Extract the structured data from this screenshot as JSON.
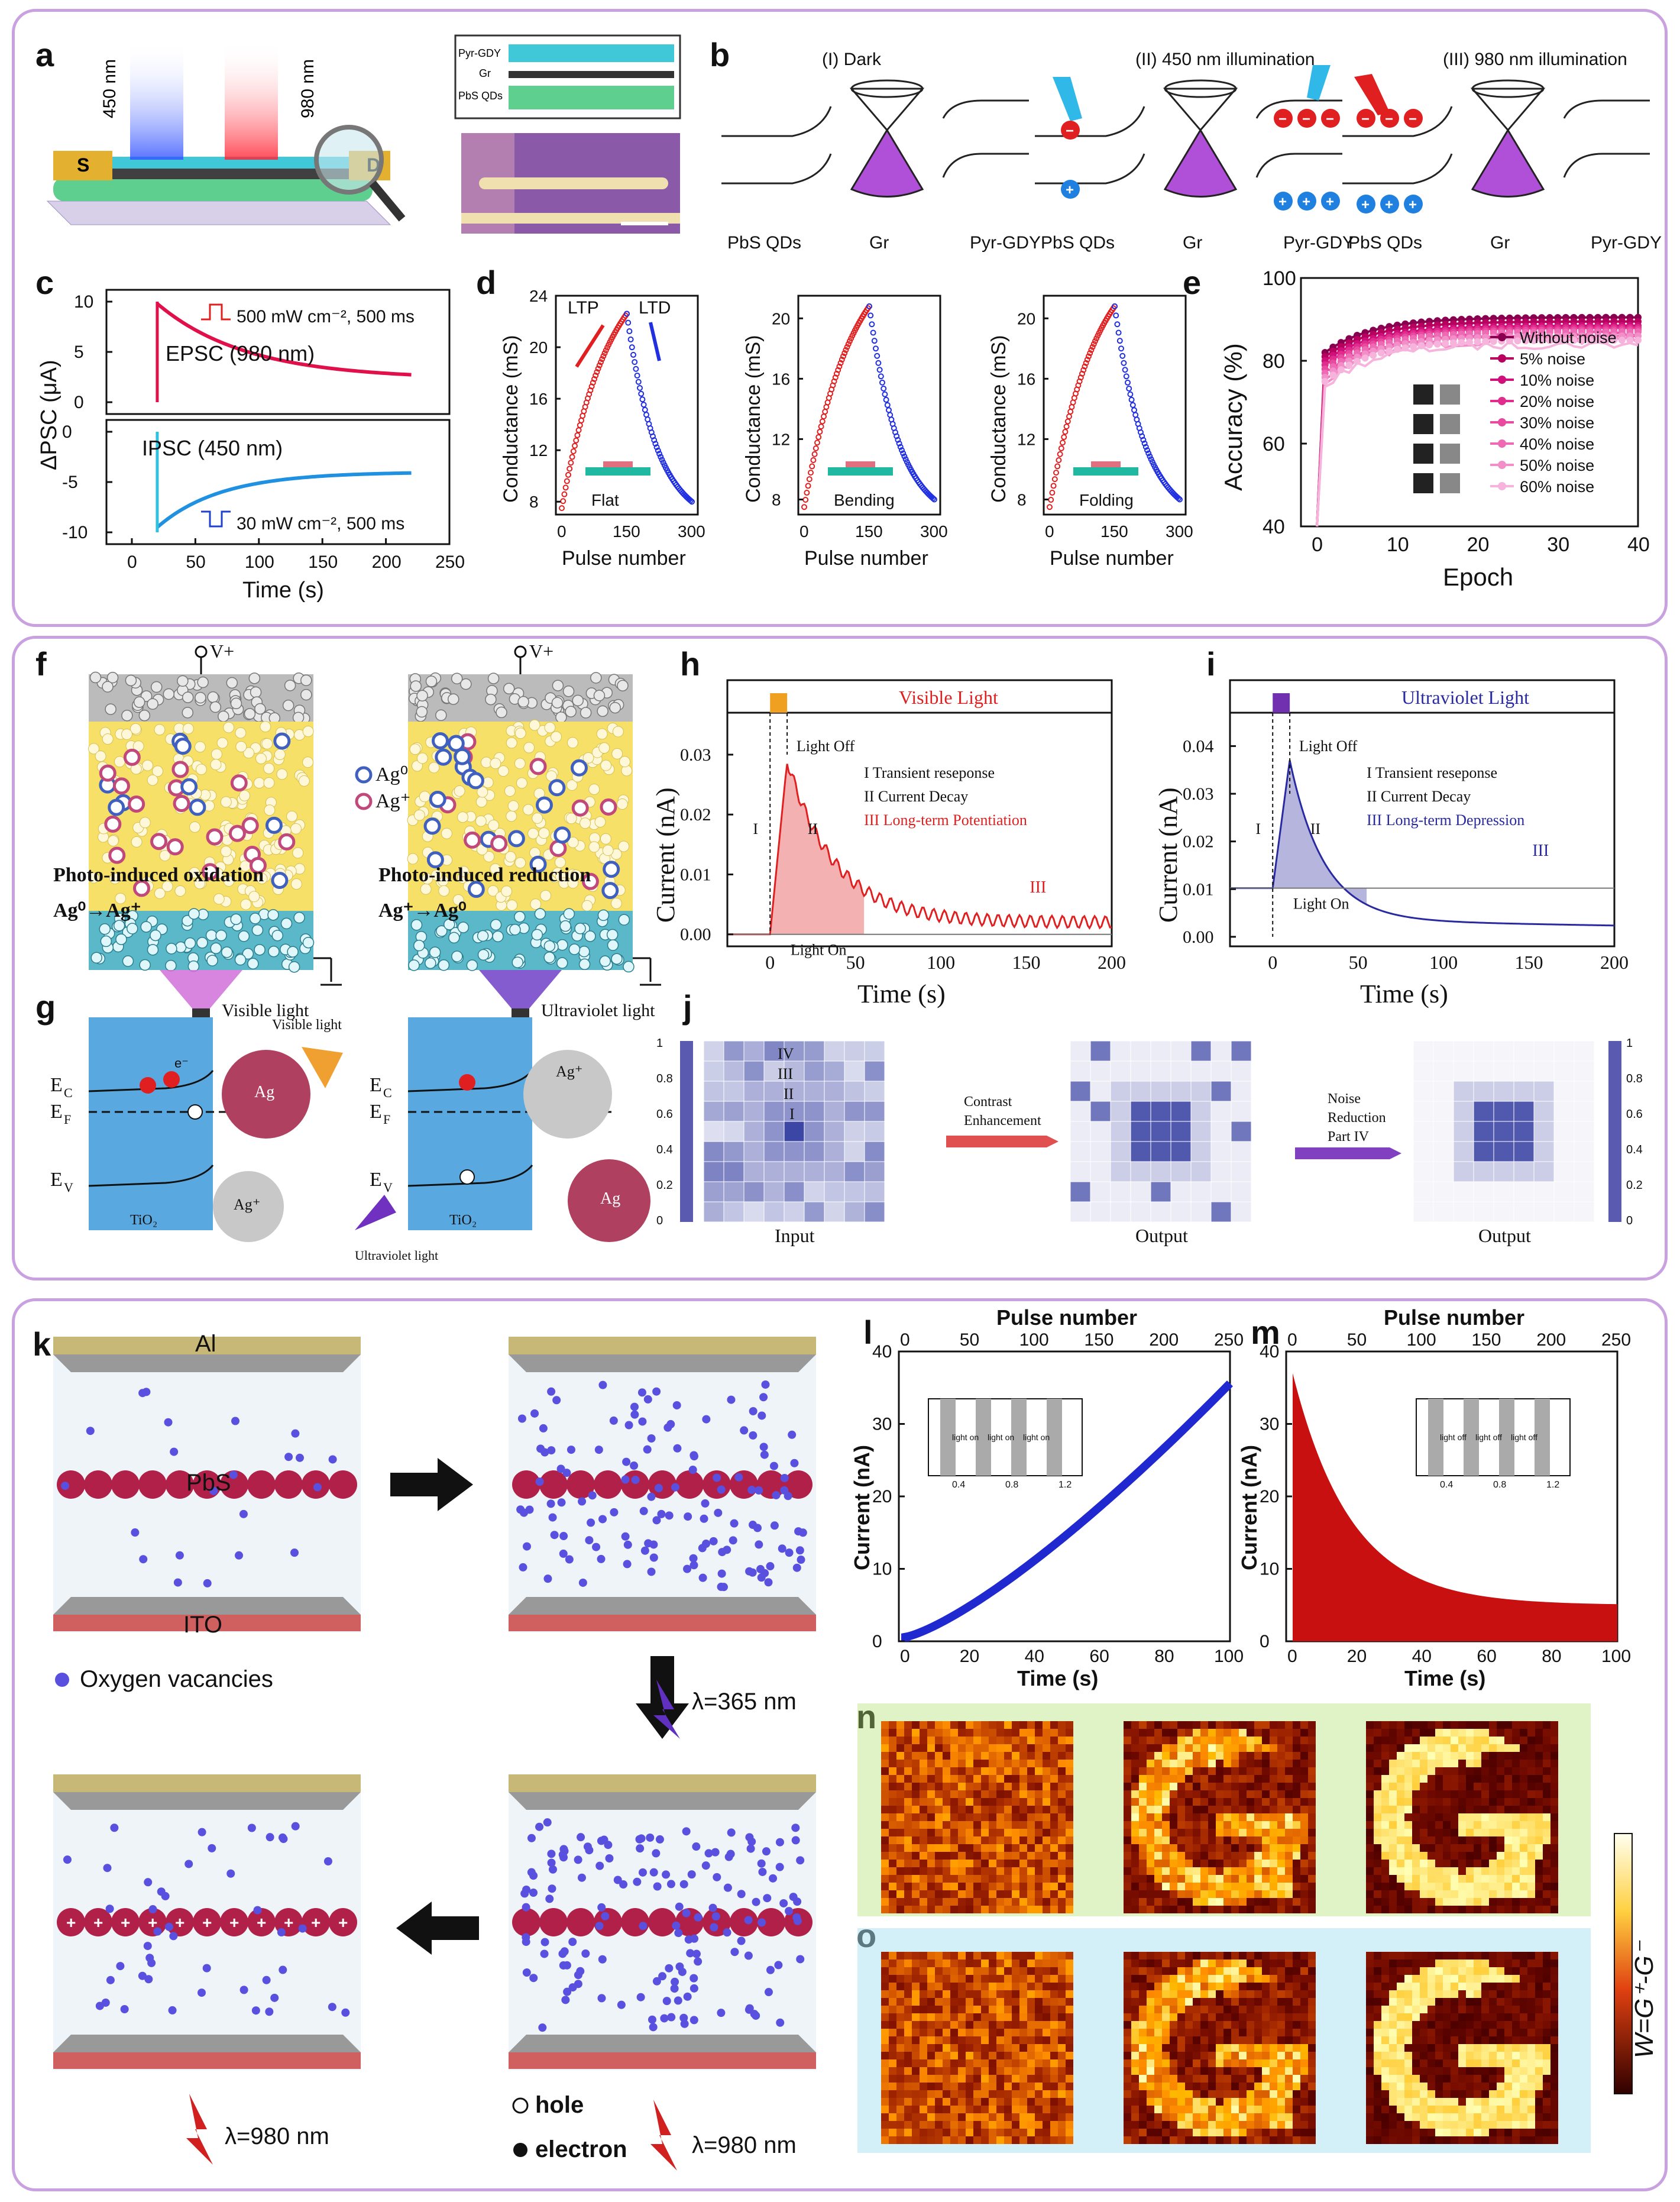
{
  "panels": {
    "a": {
      "label": "a",
      "wavelengths": [
        "450 nm",
        "980 nm"
      ],
      "electrodes": [
        "S",
        "D"
      ],
      "layers": [
        "Pyr-GDY",
        "Gr",
        "PbS QDs"
      ]
    },
    "b": {
      "label": "b",
      "states": [
        "(I) Dark",
        "(II) 450 nm illumination",
        "(III) 980 nm illumination"
      ],
      "materials": [
        "PbS QDs",
        "Gr",
        "Pyr-GDY"
      ]
    },
    "c": {
      "label": "c",
      "ylabel": "ΔPSC (μA)",
      "xlabel": "Time (s)",
      "epsc": "EPSC (980 nm)",
      "ipsc": "IPSC (450 nm)",
      "pulse1": "500 mW cm⁻², 500 ms",
      "pulse2": "30 mW cm⁻², 500 ms",
      "yticks_top": [
        "10",
        "5",
        "0"
      ],
      "yticks_bottom": [
        "0",
        "-5",
        "-10"
      ],
      "xticks": [
        "0",
        "50",
        "100",
        "150",
        "200",
        "250"
      ]
    },
    "d": {
      "label": "d",
      "ylabel": "Conductance (mS)",
      "xlabel": "Pulse number",
      "ltp": "LTP",
      "ltd": "LTD",
      "conditions": [
        "Flat",
        "Bending",
        "Folding"
      ],
      "yticks1": [
        "24",
        "20",
        "16",
        "12",
        "8"
      ],
      "yticks2": [
        "20",
        "16",
        "12",
        "8"
      ],
      "xticks": [
        "0",
        "150",
        "300"
      ]
    },
    "e": {
      "label": "e",
      "ylabel": "Accuracy (%)",
      "xlabel": "Epoch",
      "yticks": [
        "100",
        "80",
        "60",
        "40"
      ],
      "xticks": [
        "0",
        "10",
        "20",
        "30",
        "40"
      ],
      "legend": [
        "Without noise",
        "5% noise",
        "10% noise",
        "20% noise",
        "30% noise",
        "40% noise",
        "50% noise",
        "60% noise"
      ]
    },
    "f": {
      "label": "f",
      "vplus": "V+",
      "ag0": "Ag⁰",
      "agplus": "Ag⁺",
      "ox_title": "Photo-induced oxidation",
      "ox_eq": "Ag⁰→Ag⁺",
      "red_title": "Photo-induced reduction",
      "red_eq": "Ag⁺→Ag⁰",
      "light1": "Visible light",
      "light2": "Ultraviolet light"
    },
    "g": {
      "label": "g",
      "levels": [
        "E",
        "E",
        "E"
      ],
      "subs": [
        "C",
        "F",
        "V"
      ],
      "tio2": "TiO₂",
      "vis": "Visible light",
      "uv": "Ultraviolet light",
      "ag": "Ag",
      "agp": "Ag⁺",
      "e": "e⁻"
    },
    "h": {
      "label": "h",
      "title": "Visible Light",
      "ylabel": "Current (nA)",
      "xlabel": "Time (s)",
      "light_off": "Light Off",
      "light_on": "Light On",
      "legend": [
        "I  Transient reseponse",
        "II  Current Decay",
        "III Long-term Potentiation"
      ],
      "yticks": [
        "0.03",
        "0.02",
        "0.01",
        "0.00"
      ],
      "xticks": [
        "0",
        "50",
        "100",
        "150",
        "200"
      ],
      "roman": [
        "I",
        "II",
        "III"
      ]
    },
    "i": {
      "label": "i",
      "title": "Ultraviolet Light",
      "ylabel": "Current (nA)",
      "xlabel": "Time (s)",
      "light_off": "Light Off",
      "light_on": "Light On",
      "legend": [
        "I  Transient reseponse",
        "II  Current Decay",
        "III Long-term Depression"
      ],
      "yticks": [
        "0.04",
        "0.03",
        "0.02",
        "0.01",
        "0.00"
      ],
      "xticks": [
        "0",
        "50",
        "100",
        "150",
        "200"
      ],
      "roman": [
        "I",
        "II",
        "III"
      ]
    },
    "j": {
      "label": "j",
      "input": "Input",
      "output1": "Output",
      "output2": "Output",
      "arrow1": [
        "Contrast",
        "Enhancement"
      ],
      "arrow2": [
        "Noise",
        "Reduction",
        "Part IV"
      ],
      "regions": [
        "IV",
        "III",
        "II",
        "I"
      ],
      "cbar": [
        "1",
        "0.8",
        "0.6",
        "0.4",
        "0.2",
        "0"
      ]
    },
    "k": {
      "label": "k",
      "top": "Al",
      "mid": "PbS",
      "bottom": "ITO",
      "legend_ov": "Oxygen vacancies",
      "uv": "λ=365 nm",
      "ir1": "λ=980 nm",
      "ir2": "λ=980 nm",
      "hole": "hole",
      "electron": "electron"
    },
    "l": {
      "label": "l",
      "top_axis": "Pulse number",
      "ylabel": "Current (nA)",
      "xlabel": "Time (s)",
      "yticks": [
        "40",
        "30",
        "20",
        "10",
        "0"
      ],
      "xticks": [
        "0",
        "20",
        "40",
        "60",
        "80",
        "100"
      ],
      "pticks": [
        "0",
        "50",
        "100",
        "150",
        "200",
        "250"
      ],
      "inset_on": "light on",
      "inset_x": [
        "0.4",
        "0.8",
        "1.2"
      ]
    },
    "m": {
      "label": "m",
      "top_axis": "Pulse number",
      "ylabel": "Current (nA)",
      "xlabel": "Time (s)",
      "yticks": [
        "40",
        "30",
        "20",
        "10",
        "0"
      ],
      "xticks": [
        "0",
        "20",
        "40",
        "60",
        "80",
        "100"
      ],
      "pticks": [
        "0",
        "50",
        "100",
        "150",
        "200",
        "250"
      ],
      "inset_on": "light on",
      "inset_off": "light off",
      "inset_x": [
        "0.4",
        "0.8",
        "1.2"
      ]
    },
    "n": {
      "label": "n"
    },
    "o": {
      "label": "o",
      "cbar": "W=G⁺-G⁻"
    }
  },
  "colors": {
    "frame": "#c9a0e0",
    "red": "#e0201e",
    "blue": "#2040d0",
    "pink": "#e0107a",
    "purple": "#4a3fa0"
  }
}
